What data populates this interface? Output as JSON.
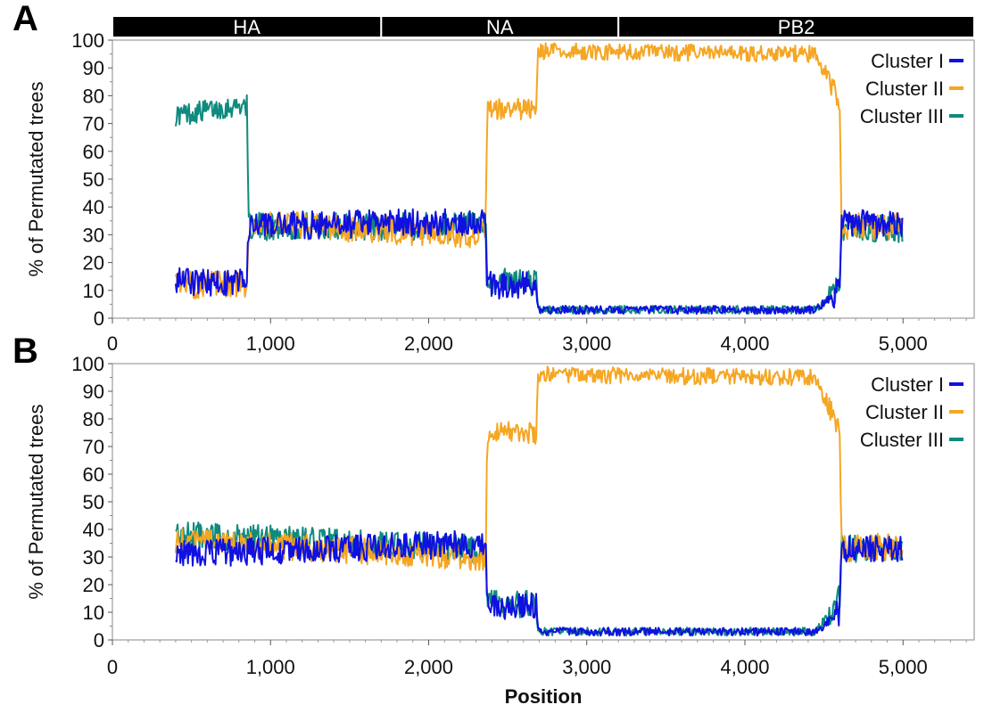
{
  "figure": {
    "colors": {
      "cluster_i": "#1010e0",
      "cluster_ii": "#f5a623",
      "cluster_iii": "#0f8a7e",
      "gene_bar": "#000000"
    },
    "xlabel": "Position"
  },
  "chart_data": [
    {
      "type": "line",
      "panel_label": "A",
      "gene_segments": [
        {
          "name": "HA",
          "start": 0,
          "end": 1700
        },
        {
          "name": "NA",
          "start": 1700,
          "end": 3200
        },
        {
          "name": "PB2",
          "start": 3200,
          "end": 5450
        }
      ],
      "ylabel": "% of Permutated trees",
      "xlim": [
        0,
        5450
      ],
      "ylim": [
        0,
        100
      ],
      "x_ticks": [
        0,
        1000,
        2000,
        3000,
        4000,
        5000
      ],
      "x_tick_labels": [
        "0",
        "1,000",
        "2,000",
        "3,000",
        "4,000",
        "5,000"
      ],
      "y_ticks": [
        0,
        10,
        20,
        30,
        40,
        50,
        60,
        70,
        80,
        90,
        100
      ],
      "legend": "top-right",
      "series": [
        {
          "name": "Cluster I",
          "color": "#1010e0",
          "x": [
            400,
            850,
            860,
            2360,
            2370,
            2680,
            2690,
            4450,
            4600,
            4610,
            5000
          ],
          "y": [
            13,
            13,
            33,
            35,
            12,
            12,
            3,
            3,
            10,
            35,
            33
          ]
        },
        {
          "name": "Cluster II",
          "color": "#f5a623",
          "x": [
            400,
            850,
            860,
            2360,
            2370,
            2680,
            2690,
            4450,
            4600,
            4610,
            5000
          ],
          "y": [
            12,
            12,
            34,
            30,
            75,
            75,
            96,
            95,
            78,
            33,
            33
          ]
        },
        {
          "name": "Cluster III",
          "color": "#0f8a7e",
          "x": [
            400,
            850,
            860,
            2360,
            2370,
            2680,
            2690,
            4450,
            4600,
            4610,
            5000
          ],
          "y": [
            73,
            77,
            33,
            33,
            13,
            13,
            3,
            3,
            12,
            33,
            32
          ]
        }
      ]
    },
    {
      "type": "line",
      "panel_label": "B",
      "ylabel": "% of Permutated trees",
      "xlabel": "Position",
      "xlim": [
        0,
        5450
      ],
      "ylim": [
        0,
        100
      ],
      "x_ticks": [
        0,
        1000,
        2000,
        3000,
        4000,
        5000
      ],
      "x_tick_labels": [
        "0",
        "1,000",
        "2,000",
        "3,000",
        "4,000",
        "5,000"
      ],
      "y_ticks": [
        0,
        10,
        20,
        30,
        40,
        50,
        60,
        70,
        80,
        90,
        100
      ],
      "legend": "top-right",
      "series": [
        {
          "name": "Cluster I",
          "color": "#1010e0",
          "x": [
            400,
            2360,
            2370,
            2680,
            2690,
            4450,
            4600,
            4610,
            5000
          ],
          "y": [
            31,
            35,
            12,
            12,
            3,
            3,
            10,
            33,
            33
          ]
        },
        {
          "name": "Cluster II",
          "color": "#f5a623",
          "x": [
            400,
            2360,
            2370,
            2680,
            2690,
            4450,
            4600,
            4610,
            5000
          ],
          "y": [
            36,
            30,
            75,
            75,
            96,
            95,
            75,
            33,
            34
          ]
        },
        {
          "name": "Cluster III",
          "color": "#0f8a7e",
          "x": [
            400,
            2360,
            2370,
            2680,
            2690,
            4450,
            4600,
            4610,
            5000
          ],
          "y": [
            38,
            33,
            13,
            13,
            3,
            3,
            15,
            33,
            33
          ]
        }
      ]
    }
  ]
}
